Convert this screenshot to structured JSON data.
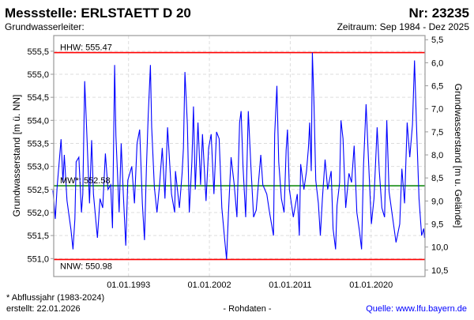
{
  "header": {
    "title": "Messstelle: ERLSTAETT D 20",
    "number": "Nr: 23235",
    "aquifer": "Grundwasserleiter:",
    "period": "Zeitraum: Sep 1984 - Dez 2025"
  },
  "footer": {
    "note": "* Abflussjahr (1983-2024)",
    "created": "erstellt:  22.01.2026",
    "rawdata": "- Rohdaten -",
    "source": "Quelle: www.lfu.bayern.de"
  },
  "colors": {
    "series": "#0000ff",
    "extreme": "#ff0000",
    "mean": "#008000",
    "source": "#0000ff"
  },
  "chart_data": {
    "type": "line",
    "ylabel": "Grundwasserstand [m ü. NN]",
    "y2label": "Grundwasserstand [m u. Gelände]",
    "ylim": [
      550.61,
      555.84
    ],
    "xlim": [
      1984.67,
      2026.0
    ],
    "ground_level": 561.25,
    "yticks": [
      "551,0",
      "551,5",
      "552,0",
      "552,5",
      "553,0",
      "553,5",
      "554,0",
      "554,5",
      "555,0",
      "555,5"
    ],
    "ytick_values": [
      551.0,
      551.5,
      552.0,
      552.5,
      553.0,
      553.5,
      554.0,
      554.5,
      555.0,
      555.5
    ],
    "y2ticks": [
      "5,5",
      "6,0",
      "6,5",
      "7,0",
      "7,5",
      "8,0",
      "8,5",
      "9,0",
      "9,5",
      "10,0",
      "10,5"
    ],
    "y2tick_values": [
      5.5,
      6.0,
      6.5,
      7.0,
      7.5,
      8.0,
      8.5,
      9.0,
      9.5,
      10.0,
      10.5
    ],
    "xticks": [
      "01.01.1993",
      "01.01.2002",
      "01.01.2011",
      "01.01.2020"
    ],
    "xtick_values": [
      1993.0,
      2002.0,
      2011.0,
      2020.0
    ],
    "reference_lines": [
      {
        "label": "HHW: 555.47",
        "value": 555.47,
        "color": "#ff0000",
        "label_pos": "above"
      },
      {
        "label": "MW*: 552.58",
        "value": 552.58,
        "color": "#008000",
        "label_pos": "above"
      },
      {
        "label": "NNW: 550.98",
        "value": 550.98,
        "color": "#ff0000",
        "label_pos": "below"
      }
    ],
    "series": [
      {
        "name": "Grundwasserstand",
        "points": [
          [
            1984.58,
            552.48
          ],
          [
            1984.85,
            551.86
          ],
          [
            1985.05,
            552.55
          ],
          [
            1985.49,
            553.59
          ],
          [
            1985.7,
            552.65
          ],
          [
            1985.85,
            553.25
          ],
          [
            1986.15,
            552.26
          ],
          [
            1986.59,
            551.63
          ],
          [
            1986.82,
            551.2
          ],
          [
            1987.03,
            551.86
          ],
          [
            1987.17,
            553.1
          ],
          [
            1987.47,
            553.2
          ],
          [
            1987.76,
            552.0
          ],
          [
            1987.91,
            552.4
          ],
          [
            1988.12,
            554.85
          ],
          [
            1988.36,
            553.67
          ],
          [
            1988.65,
            552.2
          ],
          [
            1988.89,
            553.57
          ],
          [
            1989.09,
            552.4
          ],
          [
            1989.53,
            551.45
          ],
          [
            1989.82,
            552.3
          ],
          [
            1990.12,
            552.1
          ],
          [
            1990.42,
            553.28
          ],
          [
            1990.71,
            552.5
          ],
          [
            1991.01,
            552.6
          ],
          [
            1991.21,
            551.66
          ],
          [
            1991.45,
            555.2
          ],
          [
            1991.59,
            553.67
          ],
          [
            1991.95,
            552.0
          ],
          [
            1992.18,
            553.5
          ],
          [
            1992.42,
            552.4
          ],
          [
            1992.69,
            551.28
          ],
          [
            1992.92,
            552.7
          ],
          [
            1993.36,
            553.0
          ],
          [
            1993.66,
            552.2
          ],
          [
            1993.95,
            553.5
          ],
          [
            1994.24,
            553.8
          ],
          [
            1994.54,
            552.2
          ],
          [
            1994.77,
            551.4
          ],
          [
            1994.99,
            553.0
          ],
          [
            1995.19,
            554.1
          ],
          [
            1995.43,
            555.2
          ],
          [
            1995.57,
            553.85
          ],
          [
            1995.87,
            552.55
          ],
          [
            1996.16,
            552.0
          ],
          [
            1996.45,
            552.6
          ],
          [
            1996.75,
            553.4
          ],
          [
            1997.05,
            552.3
          ],
          [
            1997.34,
            553.85
          ],
          [
            1997.78,
            552.4
          ],
          [
            1998.13,
            552.0
          ],
          [
            1998.22,
            552.9
          ],
          [
            1998.66,
            552.1
          ],
          [
            1998.96,
            552.85
          ],
          [
            1999.11,
            553.4
          ],
          [
            1999.28,
            555.05
          ],
          [
            1999.55,
            553.9
          ],
          [
            1999.76,
            552.0
          ],
          [
            2000.05,
            553.1
          ],
          [
            2000.23,
            554.3
          ],
          [
            2000.43,
            552.5
          ],
          [
            2000.73,
            553.95
          ],
          [
            2001.02,
            552.6
          ],
          [
            2001.23,
            553.7
          ],
          [
            2001.62,
            552.25
          ],
          [
            2001.91,
            553.4
          ],
          [
            2002.2,
            553.7
          ],
          [
            2002.5,
            552.4
          ],
          [
            2002.79,
            553.75
          ],
          [
            2003.08,
            553.6
          ],
          [
            2003.38,
            552.1
          ],
          [
            2003.68,
            551.45
          ],
          [
            2003.91,
            550.98
          ],
          [
            2004.12,
            552.0
          ],
          [
            2004.41,
            553.2
          ],
          [
            2004.76,
            552.6
          ],
          [
            2005.06,
            551.9
          ],
          [
            2005.36,
            553.95
          ],
          [
            2005.53,
            554.2
          ],
          [
            2005.74,
            553.0
          ],
          [
            2006.04,
            551.9
          ],
          [
            2006.33,
            554.2
          ],
          [
            2006.62,
            553.0
          ],
          [
            2006.92,
            551.9
          ],
          [
            2007.21,
            552.05
          ],
          [
            2007.72,
            553.25
          ],
          [
            2007.95,
            552.6
          ],
          [
            2008.39,
            552.4
          ],
          [
            2008.69,
            552.0
          ],
          [
            2009.13,
            551.5
          ],
          [
            2009.27,
            553.7
          ],
          [
            2009.51,
            554.75
          ],
          [
            2009.71,
            553.1
          ],
          [
            2010.01,
            552.3
          ],
          [
            2010.31,
            552.0
          ],
          [
            2010.54,
            553.35
          ],
          [
            2010.69,
            553.8
          ],
          [
            2010.9,
            552.5
          ],
          [
            2011.34,
            551.9
          ],
          [
            2011.78,
            552.4
          ],
          [
            2012.01,
            551.5
          ],
          [
            2012.16,
            553.05
          ],
          [
            2012.52,
            552.5
          ],
          [
            2012.81,
            552.9
          ],
          [
            2013.02,
            553.4
          ],
          [
            2013.16,
            553.95
          ],
          [
            2013.34,
            552.9
          ],
          [
            2013.46,
            555.47
          ],
          [
            2013.64,
            554.4
          ],
          [
            2013.84,
            552.7
          ],
          [
            2014.13,
            552.2
          ],
          [
            2014.35,
            551.5
          ],
          [
            2014.58,
            552.3
          ],
          [
            2014.88,
            553.15
          ],
          [
            2015.17,
            552.5
          ],
          [
            2015.55,
            552.9
          ],
          [
            2015.76,
            551.65
          ],
          [
            2016.05,
            551.2
          ],
          [
            2016.2,
            552.15
          ],
          [
            2016.49,
            552.65
          ],
          [
            2016.64,
            554.0
          ],
          [
            2016.87,
            553.6
          ],
          [
            2017.17,
            552.1
          ],
          [
            2017.53,
            552.85
          ],
          [
            2017.82,
            552.65
          ],
          [
            2018.11,
            553.45
          ],
          [
            2018.41,
            552.0
          ],
          [
            2018.7,
            551.6
          ],
          [
            2018.94,
            551.2
          ],
          [
            2019.15,
            553.0
          ],
          [
            2019.44,
            554.35
          ],
          [
            2019.74,
            553.0
          ],
          [
            2020.03,
            551.75
          ],
          [
            2020.32,
            552.3
          ],
          [
            2020.67,
            553.85
          ],
          [
            2020.91,
            552.9
          ],
          [
            2021.2,
            552.1
          ],
          [
            2021.5,
            551.9
          ],
          [
            2021.74,
            554.0
          ],
          [
            2022.0,
            552.45
          ],
          [
            2022.39,
            551.9
          ],
          [
            2022.77,
            551.35
          ],
          [
            2023.19,
            551.75
          ],
          [
            2023.42,
            552.95
          ],
          [
            2023.72,
            552.2
          ],
          [
            2024.01,
            553.95
          ],
          [
            2024.3,
            553.2
          ],
          [
            2024.6,
            553.9
          ],
          [
            2024.83,
            555.3
          ],
          [
            2025.04,
            553.95
          ],
          [
            2025.33,
            552.3
          ],
          [
            2025.62,
            551.5
          ],
          [
            2025.86,
            551.65
          ],
          [
            2025.95,
            551.45
          ]
        ]
      }
    ]
  }
}
